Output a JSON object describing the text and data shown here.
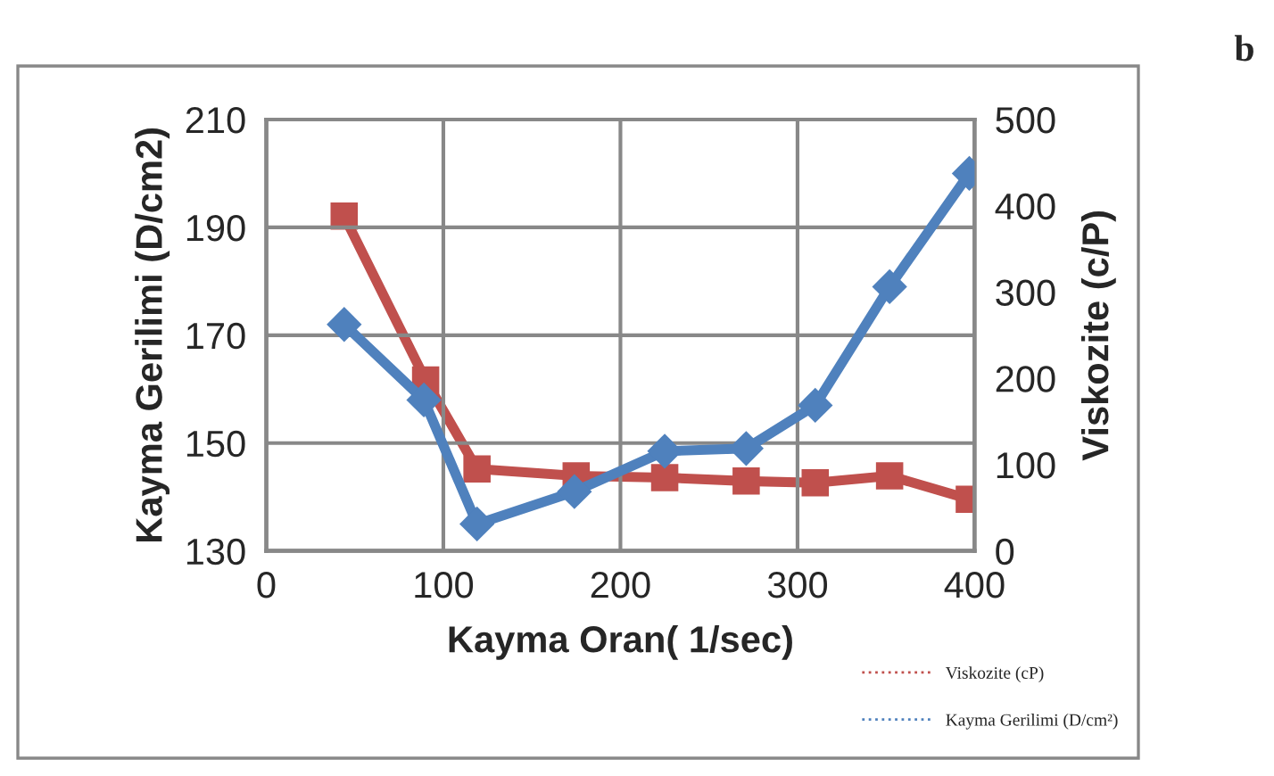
{
  "chart_data": {
    "type": "line",
    "xlabel": "Kayma Oran( 1/sec)",
    "ylabel": "Kayma Gerilimi (D/cm2)",
    "y2label": "Viskozite (c/P)",
    "annotations": [
      "b"
    ],
    "series": [
      {
        "name": "Viskozite (cP)",
        "color": "#c0504d",
        "axis": "y2",
        "marker": "square",
        "x": [
          44,
          90,
          119,
          175,
          225,
          271,
          310,
          352,
          397
        ],
        "values": [
          388,
          198,
          95,
          87,
          85,
          81,
          79,
          87,
          60
        ]
      },
      {
        "name": "Kayma Gerilimi (D/cm²)",
        "color": "#4f81bd",
        "marker": "diamond",
        "x": [
          44,
          89,
          119,
          174,
          225,
          271,
          310,
          352,
          397
        ],
        "values": [
          172,
          158,
          135,
          141,
          148.5,
          149,
          157,
          179,
          200
        ]
      }
    ],
    "xlim": [
      0,
      400
    ],
    "xticks": [
      0,
      100,
      200,
      300,
      400
    ],
    "ylim": [
      130,
      210
    ],
    "yticks": [
      130,
      150,
      170,
      190,
      210
    ],
    "y2lim": [
      0,
      500
    ],
    "y2ticks": [
      0,
      100,
      200,
      300,
      400,
      500
    ],
    "grid": true,
    "legend": "bottom right",
    "line_style": "solid"
  }
}
